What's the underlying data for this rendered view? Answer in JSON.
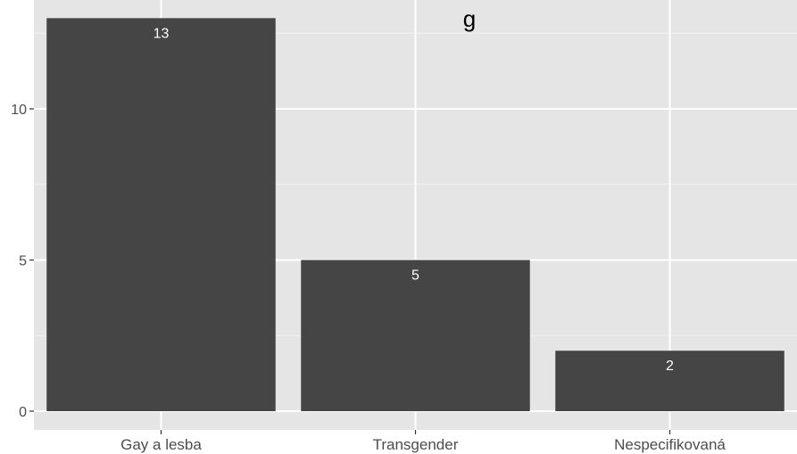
{
  "chart_data": {
    "type": "bar",
    "title": "",
    "title_fragment": "g",
    "xlabel": "",
    "ylabel": "",
    "categories": [
      "Gay a lesba",
      "Transgender",
      "Nespecifikovaná"
    ],
    "values": [
      13,
      5,
      2
    ],
    "data_labels": [
      "13",
      "5",
      "2"
    ],
    "ylim": [
      0,
      13.6
    ],
    "yticks": [
      0,
      5,
      10
    ],
    "ytick_labels": [
      "0",
      "5",
      "10"
    ],
    "grid": true,
    "legend": "none"
  },
  "colors": {
    "panel_background": "#e5e5e5",
    "grid_major": "#ffffff",
    "grid_minor": "#f2f2f2",
    "bar_fill": "#454545",
    "data_label": "#ffffff",
    "axis_text": "#4d4d4d"
  }
}
